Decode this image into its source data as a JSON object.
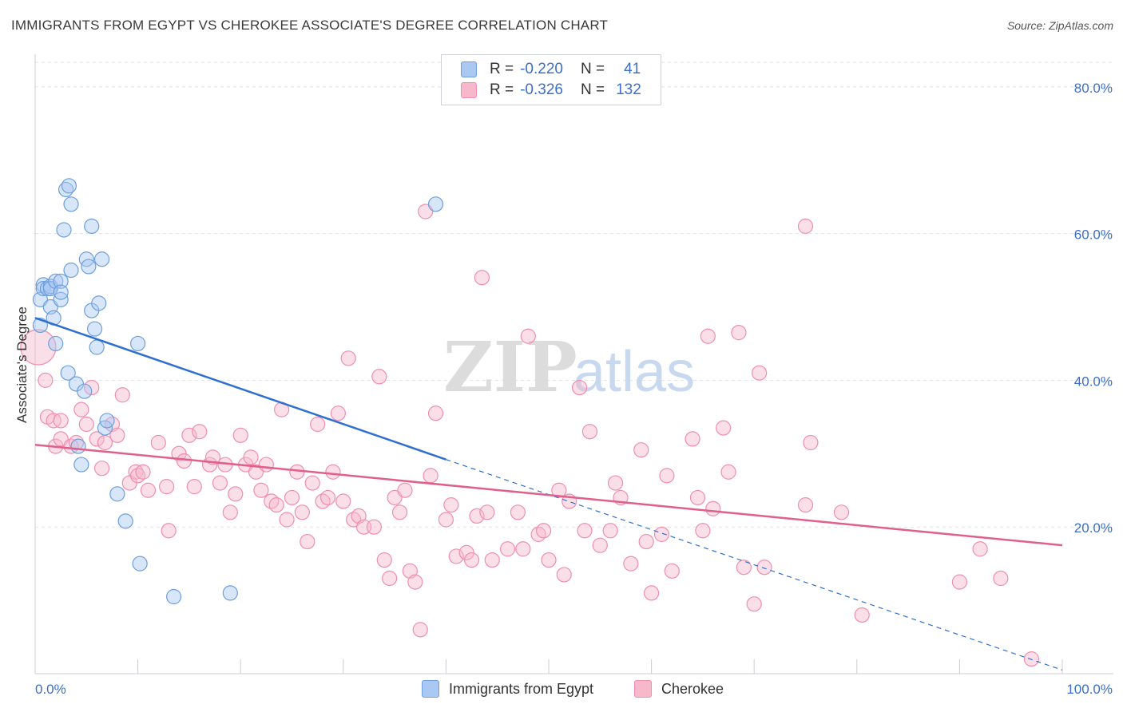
{
  "header": {
    "title": "IMMIGRANTS FROM EGYPT VS CHEROKEE ASSOCIATE'S DEGREE CORRELATION CHART",
    "source": "Source: ZipAtlas.com"
  },
  "legend": {
    "r_label": "R =",
    "n_label": "N =",
    "rows": [
      {
        "r": "-0.220",
        "n": "41",
        "color": "#a9c8f2"
      },
      {
        "r": "-0.326",
        "n": "132",
        "color": "#f7b8cc"
      }
    ]
  },
  "watermark": {
    "part1": "ZIP",
    "part2": "atlas"
  },
  "chart_data": {
    "type": "scatter",
    "title": "IMMIGRANTS FROM EGYPT VS CHEROKEE ASSOCIATE'S DEGREE CORRELATION CHART",
    "xlabel": "",
    "ylabel": "Associate's Degree",
    "xlim": [
      0,
      100
    ],
    "ylim": [
      0,
      84
    ],
    "x_tick_labels": [
      "0.0%",
      "100.0%"
    ],
    "y_ticks": [
      20,
      40,
      60,
      80
    ],
    "y_tick_labels": [
      "20.0%",
      "40.0%",
      "60.0%",
      "80.0%"
    ],
    "grid": "horizontal dashed",
    "legend_position": "top-center",
    "series": [
      {
        "name": "Immigrants from Egypt",
        "color": "#a9c8f2",
        "stroke": "#6e9fdc",
        "trend_color": "#2f6fd1",
        "trend": {
          "x0": 0,
          "y0": 48.5,
          "x1": 40,
          "y1": 29.2,
          "dashed_to_x": 100,
          "dashed_to_y": 0.5
        },
        "points": [
          [
            0.5,
            47.5
          ],
          [
            0.5,
            51
          ],
          [
            0.8,
            53
          ],
          [
            0.8,
            52.5
          ],
          [
            1.2,
            52.5
          ],
          [
            1.5,
            52.8
          ],
          [
            1.5,
            52.5
          ],
          [
            1.5,
            50
          ],
          [
            1.8,
            48.5
          ],
          [
            2,
            45
          ],
          [
            2,
            53.5
          ],
          [
            2.5,
            51
          ],
          [
            2.5,
            53.5
          ],
          [
            2.5,
            52
          ],
          [
            2.8,
            60.5
          ],
          [
            3,
            66
          ],
          [
            3.2,
            41
          ],
          [
            3.3,
            66.5
          ],
          [
            3.5,
            55
          ],
          [
            3.5,
            64
          ],
          [
            4,
            39.5
          ],
          [
            4.2,
            31
          ],
          [
            4.5,
            28.5
          ],
          [
            4.8,
            38.5
          ],
          [
            5,
            56.5
          ],
          [
            5.2,
            55.5
          ],
          [
            5.5,
            61
          ],
          [
            5.5,
            49.5
          ],
          [
            5.8,
            47
          ],
          [
            6,
            44.5
          ],
          [
            6.2,
            50.5
          ],
          [
            6.5,
            56.5
          ],
          [
            6.8,
            33.5
          ],
          [
            7,
            34.5
          ],
          [
            8,
            24.5
          ],
          [
            8.8,
            20.8
          ],
          [
            10,
            45
          ],
          [
            10.2,
            15
          ],
          [
            13.5,
            10.5
          ],
          [
            19,
            11
          ],
          [
            39,
            64
          ]
        ]
      },
      {
        "name": "Cherokee",
        "color": "#f7b8cc",
        "stroke": "#ee8fae",
        "trend_color": "#e0608b",
        "trend": {
          "x0": 0,
          "y0": 31.2,
          "x1": 100,
          "y1": 17.5
        },
        "points": [
          [
            0.3,
            44.5
          ],
          [
            1,
            40
          ],
          [
            1.2,
            35
          ],
          [
            1.8,
            34.5
          ],
          [
            2,
            31
          ],
          [
            2.5,
            32
          ],
          [
            2.5,
            34.5
          ],
          [
            3.5,
            31
          ],
          [
            4,
            31.5
          ],
          [
            4.5,
            36
          ],
          [
            5,
            34
          ],
          [
            5.5,
            39
          ],
          [
            6,
            32
          ],
          [
            6.5,
            28
          ],
          [
            6.8,
            31.5
          ],
          [
            7.5,
            34
          ],
          [
            8,
            32.5
          ],
          [
            8.5,
            38
          ],
          [
            9.2,
            26
          ],
          [
            9.8,
            27.5
          ],
          [
            10,
            27
          ],
          [
            10.5,
            27.5
          ],
          [
            11,
            25
          ],
          [
            12,
            31.5
          ],
          [
            12.8,
            25.5
          ],
          [
            13,
            19.5
          ],
          [
            14,
            30
          ],
          [
            14.5,
            29
          ],
          [
            15,
            32.5
          ],
          [
            15.5,
            25.5
          ],
          [
            16,
            33
          ],
          [
            17,
            28.5
          ],
          [
            17.3,
            29.5
          ],
          [
            18,
            26
          ],
          [
            18.5,
            28.5
          ],
          [
            19,
            22
          ],
          [
            19.5,
            24.5
          ],
          [
            20,
            32.5
          ],
          [
            20.5,
            28.5
          ],
          [
            21,
            29.5
          ],
          [
            21.5,
            27.5
          ],
          [
            22,
            25
          ],
          [
            22.5,
            28.5
          ],
          [
            23,
            23.5
          ],
          [
            23.5,
            23
          ],
          [
            24,
            36
          ],
          [
            24.5,
            21
          ],
          [
            25,
            24
          ],
          [
            25.5,
            27.5
          ],
          [
            26,
            22
          ],
          [
            26.5,
            18
          ],
          [
            27,
            26
          ],
          [
            27.5,
            34
          ],
          [
            28,
            23.5
          ],
          [
            28.5,
            24
          ],
          [
            29,
            27.5
          ],
          [
            29.5,
            35.5
          ],
          [
            30,
            23.5
          ],
          [
            30.5,
            43
          ],
          [
            31,
            21
          ],
          [
            31.5,
            21.5
          ],
          [
            32,
            20
          ],
          [
            33,
            20
          ],
          [
            33.5,
            40.5
          ],
          [
            34,
            15.5
          ],
          [
            34.5,
            13
          ],
          [
            35,
            24
          ],
          [
            35.5,
            22
          ],
          [
            36,
            25
          ],
          [
            36.5,
            14
          ],
          [
            37,
            12.5
          ],
          [
            37.5,
            6
          ],
          [
            38,
            63
          ],
          [
            38.5,
            27
          ],
          [
            39,
            35.5
          ],
          [
            40,
            21
          ],
          [
            40.5,
            23
          ],
          [
            41,
            16
          ],
          [
            42,
            16.5
          ],
          [
            42.5,
            15.5
          ],
          [
            43,
            21.5
          ],
          [
            43.5,
            54
          ],
          [
            44,
            22
          ],
          [
            44.5,
            15.5
          ],
          [
            46,
            17
          ],
          [
            47,
            22
          ],
          [
            47.5,
            17
          ],
          [
            48,
            46
          ],
          [
            49,
            19
          ],
          [
            49.5,
            19.5
          ],
          [
            50,
            15.5
          ],
          [
            51,
            25
          ],
          [
            51.5,
            13.5
          ],
          [
            52,
            23.5
          ],
          [
            53,
            39
          ],
          [
            53.5,
            19.5
          ],
          [
            54,
            33
          ],
          [
            55,
            17.5
          ],
          [
            56,
            19.5
          ],
          [
            56.5,
            26
          ],
          [
            57,
            24
          ],
          [
            58,
            15
          ],
          [
            59,
            30.5
          ],
          [
            59.5,
            18
          ],
          [
            60,
            11
          ],
          [
            61,
            19
          ],
          [
            61.5,
            27
          ],
          [
            62,
            14
          ],
          [
            64,
            32
          ],
          [
            64.5,
            24
          ],
          [
            65,
            19.5
          ],
          [
            65.5,
            46
          ],
          [
            66,
            22.5
          ],
          [
            67,
            33.5
          ],
          [
            67.5,
            27.5
          ],
          [
            68.5,
            46.5
          ],
          [
            69,
            14.5
          ],
          [
            70,
            9.5
          ],
          [
            70.5,
            41
          ],
          [
            71,
            14.5
          ],
          [
            75,
            23
          ],
          [
            75,
            61
          ],
          [
            75.5,
            31.5
          ],
          [
            78.5,
            22
          ],
          [
            80.5,
            8
          ],
          [
            90,
            12.5
          ],
          [
            92,
            17
          ],
          [
            94,
            13
          ],
          [
            97,
            2
          ]
        ]
      }
    ]
  },
  "bottom_legend": [
    "Immigrants from Egypt",
    "Cherokee"
  ]
}
